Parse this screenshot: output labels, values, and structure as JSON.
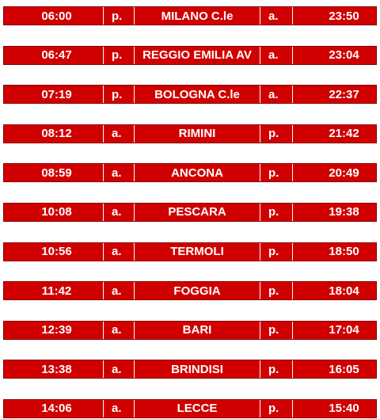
{
  "rows": [
    {
      "time": "06:00",
      "code": "p.",
      "station": "MILANO C.le",
      "code2": "a.",
      "time2": "23:50"
    },
    {
      "time": "06:47",
      "code": "p.",
      "station": "REGGIO EMILIA AV",
      "code2": "a.",
      "time2": "23:04"
    },
    {
      "time": "07:19",
      "code": "p.",
      "station": "BOLOGNA C.le",
      "code2": "a.",
      "time2": "22:37"
    },
    {
      "time": "08:12",
      "code": "a.",
      "station": "RIMINI",
      "code2": "p.",
      "time2": "21:42"
    },
    {
      "time": "08:59",
      "code": "a.",
      "station": "ANCONA",
      "code2": "p.",
      "time2": "20:49"
    },
    {
      "time": "10:08",
      "code": "a.",
      "station": "PESCARA",
      "code2": "p.",
      "time2": "19:38"
    },
    {
      "time": "10:56",
      "code": "a.",
      "station": "TERMOLI",
      "code2": "p.",
      "time2": "18:50"
    },
    {
      "time": "11:42",
      "code": "a.",
      "station": "FOGGIA",
      "code2": "p.",
      "time2": "18:04"
    },
    {
      "time": "12:39",
      "code": "a.",
      "station": "BARI",
      "code2": "p.",
      "time2": "17:04"
    },
    {
      "time": "13:38",
      "code": "a.",
      "station": "BRINDISI",
      "code2": "p.",
      "time2": "16:05"
    },
    {
      "time": "14:06",
      "code": "a.",
      "station": "LECCE",
      "code2": "p.",
      "time2": "15:40"
    }
  ],
  "colors": {
    "row_background": "#d00000",
    "text": "#ffffff"
  }
}
